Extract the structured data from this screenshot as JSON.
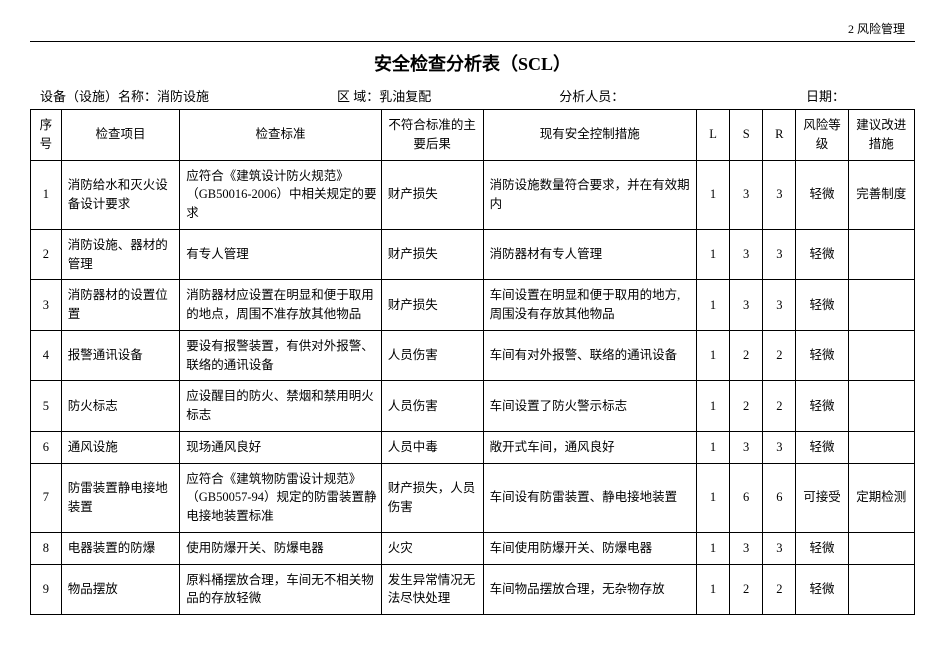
{
  "header_right": "2 风险管理",
  "title": "安全检查分析表（SCL）",
  "meta": {
    "equip_label": "设备（设施）名称：",
    "equip_value": "消防设施",
    "area_label": "区 域：",
    "area_value": "乳油复配",
    "analyst_label": "分析人员：",
    "analyst_value": "",
    "date_label": "日期：",
    "date_value": ""
  },
  "columns": {
    "seq": "序号",
    "item": "检查项目",
    "standard": "检查标准",
    "consequence": "不符合标准的主要后果",
    "measure": "现有安全控制措施",
    "L": "L",
    "S": "S",
    "R": "R",
    "risk": "风险等级",
    "suggestion": "建议改进措施"
  },
  "rows": [
    {
      "seq": "1",
      "item": "消防给水和灭火设备设计要求",
      "standard": "应符合《建筑设计防火规范》（GB50016-2006）中相关规定的要求",
      "consequence": "财产损失",
      "measure": "消防设施数量符合要求，并在有效期内",
      "L": "1",
      "S": "3",
      "R": "3",
      "risk": "轻微",
      "suggestion": "完善制度"
    },
    {
      "seq": "2",
      "item": "消防设施、器材的管理",
      "standard": "有专人管理",
      "consequence": "财产损失",
      "measure": "消防器材有专人管理",
      "L": "1",
      "S": "3",
      "R": "3",
      "risk": "轻微",
      "suggestion": ""
    },
    {
      "seq": "3",
      "item": "消防器材的设置位置",
      "standard": "消防器材应设置在明显和便于取用的地点，周围不准存放其他物品",
      "consequence": "财产损失",
      "measure": "车间设置在明显和便于取用的地方,周围没有存放其他物品",
      "L": "1",
      "S": "3",
      "R": "3",
      "risk": "轻微",
      "suggestion": ""
    },
    {
      "seq": "4",
      "item": "报警通讯设备",
      "standard": "要设有报警装置，有供对外报警、联络的通讯设备",
      "consequence": "人员伤害",
      "measure": "车间有对外报警、联络的通讯设备",
      "L": "1",
      "S": "2",
      "R": "2",
      "risk": "轻微",
      "suggestion": ""
    },
    {
      "seq": "5",
      "item": "防火标志",
      "standard": "应设醒目的防火、禁烟和禁用明火标志",
      "consequence": "人员伤害",
      "measure": "车间设置了防火警示标志",
      "L": "1",
      "S": "2",
      "R": "2",
      "risk": "轻微",
      "suggestion": ""
    },
    {
      "seq": "6",
      "item": "通风设施",
      "standard": "现场通风良好",
      "consequence": "人员中毒",
      "measure": "敞开式车间，通风良好",
      "L": "1",
      "S": "3",
      "R": "3",
      "risk": "轻微",
      "suggestion": ""
    },
    {
      "seq": "7",
      "item": "防雷装置静电接地装置",
      "standard": "应符合《建筑物防雷设计规范》（GB50057-94）规定的防雷装置静电接地装置标准",
      "consequence": "财产损失，人员伤害",
      "measure": "车间设有防雷装置、静电接地装置",
      "L": "1",
      "S": "6",
      "R": "6",
      "risk": "可接受",
      "suggestion": "定期检测"
    },
    {
      "seq": "8",
      "item": "电器装置的防爆",
      "standard": "使用防爆开关、防爆电器",
      "consequence": "火灾",
      "measure": "车间使用防爆开关、防爆电器",
      "L": "1",
      "S": "3",
      "R": "3",
      "risk": "轻微",
      "suggestion": ""
    },
    {
      "seq": "9",
      "item": "物品摆放",
      "standard": "原料桶摆放合理，车间无不相关物品的存放轻微",
      "consequence": "发生异常情况无法尽快处理",
      "measure": "车间物品摆放合理，无杂物存放",
      "L": "1",
      "S": "2",
      "R": "2",
      "risk": "轻微",
      "suggestion": ""
    }
  ]
}
